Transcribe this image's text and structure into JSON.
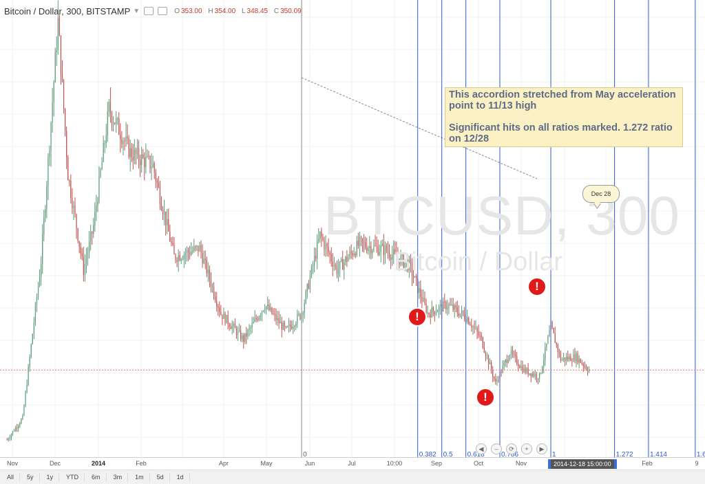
{
  "header": {
    "symbol": "Bitcoin / Dollar, 300, BITSTAMP",
    "o_label": "O",
    "o_value": "353.00",
    "h_label": "H",
    "h_value": "354.00",
    "l_label": "L",
    "l_value": "348.45",
    "c_label": "C",
    "c_value": "350.09"
  },
  "watermark": {
    "line1": "BTCUSD, 300",
    "line2": "Bitcoin / Dollar"
  },
  "annotation": {
    "line1": "This accordion stretched from May acceleration point to 11/13 high",
    "line2": "Significant hits on all ratios marked. 1.272 ratio on 12/28"
  },
  "callout": {
    "label": "Dec 28"
  },
  "alert_glyph": "!",
  "navigation": {
    "prev": "◀",
    "zoom_out": "–",
    "reset": "⟳",
    "zoom_in": "+",
    "next": "▶"
  },
  "range_buttons": [
    "All",
    "5y",
    "1y",
    "YTD",
    "6m",
    "3m",
    "1m",
    "5d",
    "1d"
  ],
  "crosshair_time": "2014-12-18 15:00:00",
  "fib_origin_label": "0",
  "chart_data": {
    "type": "candlestick",
    "title": "Bitcoin / Dollar, 300, BITSTAMP",
    "x_ticks": [
      "Nov",
      "Dec",
      "2014",
      "Feb",
      "Apr",
      "May",
      "Jun",
      "Jul",
      "10:00",
      "Sep",
      "Oct",
      "Nov",
      "Feb",
      "9"
    ],
    "ylim": [
      150,
      1200
    ],
    "price_path": [
      {
        "date": "2013-10-25",
        "price": 190
      },
      {
        "date": "2013-11-05",
        "price": 240
      },
      {
        "date": "2013-11-18",
        "price": 600
      },
      {
        "date": "2013-11-30",
        "price": 1150
      },
      {
        "date": "2013-12-07",
        "price": 800
      },
      {
        "date": "2013-12-18",
        "price": 580
      },
      {
        "date": "2013-12-25",
        "price": 680
      },
      {
        "date": "2014-01-05",
        "price": 950
      },
      {
        "date": "2014-01-20",
        "price": 850
      },
      {
        "date": "2014-02-05",
        "price": 820
      },
      {
        "date": "2014-02-20",
        "price": 610
      },
      {
        "date": "2014-03-10",
        "price": 630
      },
      {
        "date": "2014-03-25",
        "price": 480
      },
      {
        "date": "2014-04-10",
        "price": 420
      },
      {
        "date": "2014-04-25",
        "price": 500
      },
      {
        "date": "2014-05-10",
        "price": 440
      },
      {
        "date": "2014-05-21",
        "price": 480
      },
      {
        "date": "2014-06-03",
        "price": 660
      },
      {
        "date": "2014-06-15",
        "price": 580
      },
      {
        "date": "2014-07-01",
        "price": 640
      },
      {
        "date": "2014-07-20",
        "price": 625
      },
      {
        "date": "2014-08-05",
        "price": 590
      },
      {
        "date": "2014-08-18",
        "price": 480
      },
      {
        "date": "2014-09-01",
        "price": 500
      },
      {
        "date": "2014-09-15",
        "price": 470
      },
      {
        "date": "2014-09-25",
        "price": 420
      },
      {
        "date": "2014-10-05",
        "price": 320
      },
      {
        "date": "2014-10-15",
        "price": 390
      },
      {
        "date": "2014-10-25",
        "price": 350
      },
      {
        "date": "2014-11-05",
        "price": 335
      },
      {
        "date": "2014-11-13",
        "price": 450
      },
      {
        "date": "2014-11-20",
        "price": 375
      },
      {
        "date": "2014-12-01",
        "price": 380
      },
      {
        "date": "2014-12-10",
        "price": 350
      }
    ],
    "reference_price": 350.09,
    "fib_time_zones": [
      {
        "label": "0.382",
        "date": "2014-08-11"
      },
      {
        "label": "0.5",
        "date": "2014-08-28"
      },
      {
        "label": "0.618",
        "date": "2014-09-14"
      },
      {
        "label": "0.786",
        "date": "2014-10-08"
      },
      {
        "label": "1",
        "date": "2014-11-13"
      },
      {
        "label": "1.272",
        "date": "2014-12-28"
      },
      {
        "label": "1.414",
        "date": "2015-01-21"
      },
      {
        "label": "1.6",
        "date": "2015-02-23"
      }
    ],
    "fib_origin_date": "2014-05-21",
    "alert_dates": [
      "2014-08-28",
      "2014-10-08",
      "2014-11-13"
    ],
    "colors": {
      "up": "#5a9a78",
      "down": "#c0504d",
      "fib_line": "#2e5bd6",
      "reference": "#e57373"
    }
  }
}
